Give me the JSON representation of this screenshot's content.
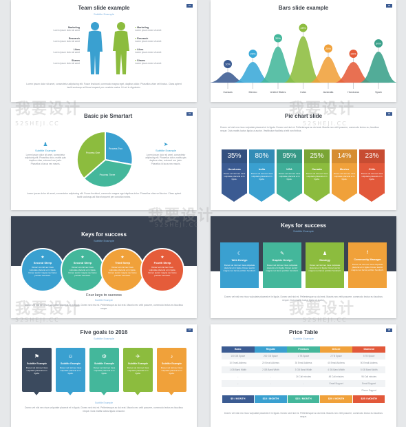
{
  "slides": {
    "team": {
      "title": "Team slide example",
      "subtitle": "Subtitle Example",
      "left_items": [
        "Marketing",
        "Research",
        "Likes",
        "Shares"
      ],
      "right_items": [
        "Marketing",
        "Research",
        "Likes",
        "Shares"
      ],
      "body": "Lorem ipsum dolor sit amet, consectetur adipiscing elit. Fusce tincidunt, commodo magna eget, dapibus dolor. Phasellus vitae vel tinctus. Class aptent taciti sociosqu ad litora torquent per conubia nostra. Ut vel in dignissim.",
      "page": "01"
    },
    "bars": {
      "title": "Bars slide example",
      "page": "02",
      "colors": [
        "#3b5b92",
        "#3aa9d8",
        "#44b79b",
        "#8dbd3f",
        "#f0a13a",
        "#e55c3a",
        "#3aa08a"
      ],
      "body": "Lorem ipsum dolor sit amet, consectetur adipiscing elit. Fusce tincidunt, commodo magna eget dapibus dolor. Phasellus vitae vel tinctus."
    },
    "pie": {
      "title": "Basic pie Smartart",
      "page": "03",
      "segments": [
        "Process One",
        "Process Two",
        "Process Three"
      ],
      "left_title": "Subtitle Example",
      "right_title": "Subtitle Example",
      "side_text": "Lorem ipsum dolor sit amet, consectetur adipiscing elit. Phasellus dolor, mattis quis dapibus vitae, euismod non justo. Phasellus id lacus nec mauris.",
      "body": "Lorem ipsum dolor sit amet, consectetur adipiscing elit. Fusce tincidunt, commodo magna eget dapibus dolor. Phasellus vitae vel tinctus. Class aptent taciti sociosqu ad litora torquent per conubia nostra."
    },
    "pie_chart": {
      "title": "Pie chart slide",
      "page": "04",
      "intro": "Donec vel nisl nec risus vulputate placerat et in ligula. Donec sed nisi mi. Pellentesque ac dui erat. Mauris nec velit posuere, commodo lectus eu, faucibus neque. Duis mattis luctus ligula ut auctor. Vestibulum facilisis at elit non finibus.",
      "cards": [
        {
          "pct": "35%",
          "name": "Honduras",
          "color": "#3b5b92",
          "top": "#33507f"
        },
        {
          "pct": "80%",
          "name": "India",
          "color": "#3aa0d0",
          "top": "#328cb6"
        },
        {
          "pct": "95%",
          "name": "USA",
          "color": "#3fae98",
          "top": "#379886"
        },
        {
          "pct": "25%",
          "name": "Canada",
          "color": "#8cbc3e",
          "top": "#7aa535"
        },
        {
          "pct": "14%",
          "name": "Mexico",
          "color": "#f0a13a",
          "top": "#d68d31"
        },
        {
          "pct": "23%",
          "name": "Chile",
          "color": "#e2583a",
          "top": "#c74c32"
        }
      ],
      "card_text": "Donec vel nisl nec risus vulputate placerat et in ligula."
    },
    "keys1": {
      "title": "Keys for success",
      "subtitle": "Subtitle Example",
      "steps": [
        {
          "name": "Second Steep",
          "color": "#3aa0d0"
        },
        {
          "name": "Second Steep",
          "color": "#44b79b"
        },
        {
          "name": "Third Steep",
          "color": "#f0a13a"
        },
        {
          "name": "Fourth Steep",
          "color": "#e55c3a"
        }
      ],
      "step_text": "Donec vel nisl nec risus vulputate placerat et in ligula. Donec auctor magna nec lacus porttitor hendrerit.",
      "footer_title": "Four keys to success",
      "footer_sub": "Subtitle Example",
      "body": "Donec vel nisl nec risus vulputate placerat et in ligula. Donec sed nisi mi. Pellentesque ac dui erat. Mauris nec velit posuere, commodo lectus eu faucibus neque."
    },
    "keys2": {
      "title": "Keys for success",
      "subtitle": "Subtitle Example",
      "cards": [
        {
          "name": "Web Design",
          "color": "#3aa0d0",
          "icon": "☾"
        },
        {
          "name": "Graphic Design",
          "color": "#44b79b",
          "icon": "✎"
        },
        {
          "name": "Strategy",
          "color": "#8cbc3e",
          "icon": "♟"
        },
        {
          "name": "Community Manager",
          "color": "#f0a13a",
          "icon": "f"
        }
      ],
      "card_text": "Donec vel nisl nec risus vulputate placerat et in ligula. Donec auctor magna nec lacus porttitor hendrerit.",
      "body": "Donec vel nisl nec risus vulputate placerat et in ligula. Donec sed nisi mi. Pellentesque ac dui erat. Mauris nec velit posuere, commodo lectus eu faucibus neque. Duis mattis luctus ligula ut auctor."
    },
    "goals": {
      "title": "Five goals to 2016",
      "subtitle": "Subtitle Example",
      "page": "07",
      "cards": [
        {
          "name": "Subtitle Example",
          "color": "#3b4a5e",
          "icon": "⚑"
        },
        {
          "name": "Subtitle Example",
          "color": "#3aa0d0",
          "icon": "☺"
        },
        {
          "name": "Subtitle Example",
          "color": "#44b79b",
          "icon": "⚙"
        },
        {
          "name": "Subtitle Example",
          "color": "#8cbc3e",
          "icon": "✈"
        },
        {
          "name": "Subtitle Example",
          "color": "#f0a13a",
          "icon": "♪"
        }
      ],
      "card_text": "Donec vel nisl nec risus vulputate placerat et in ligula.",
      "footer_sub": "Subtitle Example",
      "body": "Donec vel nisl nec risus vulputate placerat et in ligula. Donec sed nisi mi. Pellentesque ac dui erat. Mauris nec velit posuere, commodo lectus eu faucibus neque. Duis mattis luctus ligula ut auctor."
    },
    "price": {
      "title": "Price Table",
      "subtitle": "Subtitle Example",
      "page": "08",
      "plans": [
        {
          "name": "Basic",
          "color": "#3b5b92",
          "price": "$5 / MONTH"
        },
        {
          "name": "Regular",
          "color": "#3aa0d0",
          "price": "$10 / MONTH"
        },
        {
          "name": "Premium",
          "color": "#44b79b",
          "price": "$15 / MONTH"
        },
        {
          "name": "Deluxe",
          "color": "#f0a13a",
          "price": "$20 / MONTH"
        },
        {
          "name": "Diamond",
          "color": "#e2583a",
          "price": "$25 / MONTH"
        }
      ],
      "rows": [
        [
          "100 GB Space",
          "200 GB Space",
          "1 TB Space",
          "2 TB Space",
          "5 TB Space"
        ],
        [
          "10 Email Address",
          "20 Email Address",
          "30 Email Address",
          "40 Email Address",
          "50 Email Address"
        ],
        [
          "1 GB Band Width",
          "2 GB Band Width",
          "3 GB Band Width",
          "4 GB Band Width",
          "5 GB Band Width"
        ],
        [
          "-",
          "-",
          "24 Call minutes",
          "48 Call minutes",
          "96 Call minutes"
        ],
        [
          "-",
          "-",
          "-",
          "Email Support",
          "Email Support"
        ],
        [
          "-",
          "-",
          "-",
          "-",
          "Phone Support"
        ]
      ],
      "body": "Donec vel nisl nec risus vulputate placerat et in ligula. Donec sed nisi mi. Pellentesque ac dui erat. Mauris nec velit posuere, commodo lectus eu faucibus neque."
    }
  },
  "chart_data": {
    "type": "area",
    "title": "Bars slide example",
    "categories": [
      "Canada",
      "Mexico",
      "United States",
      "India",
      "Australia",
      "Honduras",
      "Spain"
    ],
    "values": [
      10,
      20,
      35,
      45,
      25,
      20,
      30
    ],
    "labels": [
      "10%",
      "20%",
      "35%",
      "45%",
      "25%",
      "20%",
      "30%"
    ],
    "ylim": [
      0,
      50
    ],
    "grid": false
  },
  "watermark": {
    "brand": "我要设计",
    "url": "52SHEJI.CC"
  }
}
